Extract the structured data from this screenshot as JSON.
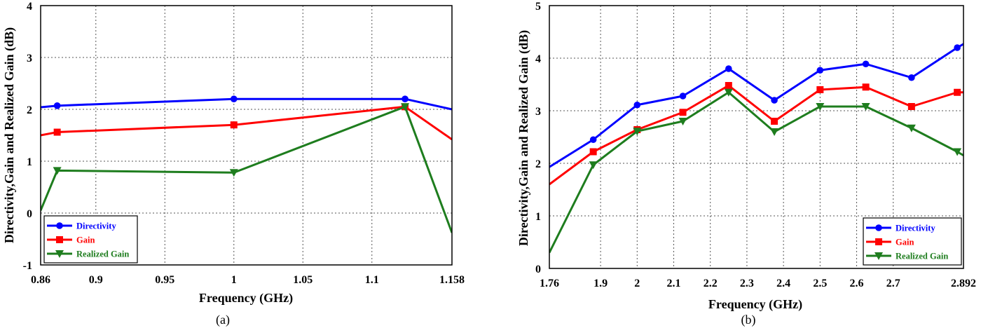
{
  "chart_data": [
    {
      "type": "line",
      "caption": "(a)",
      "xlabel": "Frequency (GHz)",
      "ylabel": "Directivity,Gain and Realized Gain (dB)",
      "xlim": [
        0.86,
        1.158
      ],
      "ylim": [
        -1,
        4
      ],
      "xticks": [
        0.86,
        0.9,
        0.95,
        1,
        1.05,
        1.1,
        1.158
      ],
      "xtick_labels": [
        "0.86",
        "0.9",
        "0.95",
        "1",
        "1.05",
        "1.1",
        "1.158"
      ],
      "yticks": [
        -1,
        0,
        1,
        2,
        3,
        4
      ],
      "ytick_labels": [
        "-1",
        "0",
        "1",
        "2",
        "3",
        "4"
      ],
      "grid": true,
      "legend_position": "bottom-left",
      "series": [
        {
          "name": "Directivity",
          "color": "#0000ff",
          "marker": "circle",
          "x": [
            0.86,
            0.872,
            1.0,
            1.124,
            1.158
          ],
          "y": [
            2.04,
            2.07,
            2.2,
            2.2,
            2.0
          ]
        },
        {
          "name": "Gain",
          "color": "#ff0000",
          "marker": "square",
          "x": [
            0.86,
            0.872,
            1.0,
            1.124,
            1.158
          ],
          "y": [
            1.5,
            1.56,
            1.7,
            2.05,
            1.42
          ]
        },
        {
          "name": "Realized Gain",
          "color": "#1e7d1e",
          "marker": "triangle-down",
          "x": [
            0.86,
            0.872,
            1.0,
            1.124,
            1.158
          ],
          "y": [
            0.05,
            0.82,
            0.78,
            2.05,
            -0.38
          ]
        }
      ]
    },
    {
      "type": "line",
      "caption": "(b)",
      "xlabel": "Frequency (GHz)",
      "ylabel": "Directivity,Gain and Realized Gain (dB)",
      "xlim": [
        1.76,
        2.892
      ],
      "ylim": [
        0,
        5
      ],
      "xticks": [
        1.76,
        1.9,
        2.0,
        2.1,
        2.2,
        2.3,
        2.4,
        2.5,
        2.6,
        2.7,
        2.892
      ],
      "xtick_labels": [
        "1.76",
        "1.9",
        "2",
        "2.1",
        "2.2",
        "2.3",
        "2.4",
        "2.5",
        "2.6",
        "2.7",
        "2.892"
      ],
      "yticks": [
        0,
        1,
        2,
        3,
        4,
        5
      ],
      "ytick_labels": [
        "0",
        "1",
        "2",
        "3",
        "4",
        "5"
      ],
      "grid": true,
      "legend_position": "bottom-right",
      "series": [
        {
          "name": "Directivity",
          "color": "#0000ff",
          "marker": "circle",
          "x": [
            1.76,
            1.88,
            2.0,
            2.125,
            2.25,
            2.375,
            2.5,
            2.625,
            2.75,
            2.875,
            2.892
          ],
          "y": [
            1.93,
            2.45,
            3.11,
            3.28,
            3.8,
            3.2,
            3.77,
            3.89,
            3.63,
            4.2,
            4.27
          ]
        },
        {
          "name": "Gain",
          "color": "#ff0000",
          "marker": "square",
          "x": [
            1.76,
            1.88,
            2.0,
            2.125,
            2.25,
            2.375,
            2.5,
            2.625,
            2.75,
            2.875,
            2.892
          ],
          "y": [
            1.6,
            2.22,
            2.64,
            2.97,
            3.48,
            2.8,
            3.4,
            3.45,
            3.08,
            3.35,
            3.35
          ]
        },
        {
          "name": "Realized Gain",
          "color": "#1e7d1e",
          "marker": "triangle-down",
          "x": [
            1.76,
            1.88,
            2.0,
            2.125,
            2.25,
            2.375,
            2.5,
            2.625,
            2.75,
            2.875,
            2.892
          ],
          "y": [
            0.3,
            1.97,
            2.61,
            2.8,
            3.35,
            2.6,
            3.08,
            3.08,
            2.67,
            2.22,
            2.15
          ]
        }
      ]
    }
  ]
}
